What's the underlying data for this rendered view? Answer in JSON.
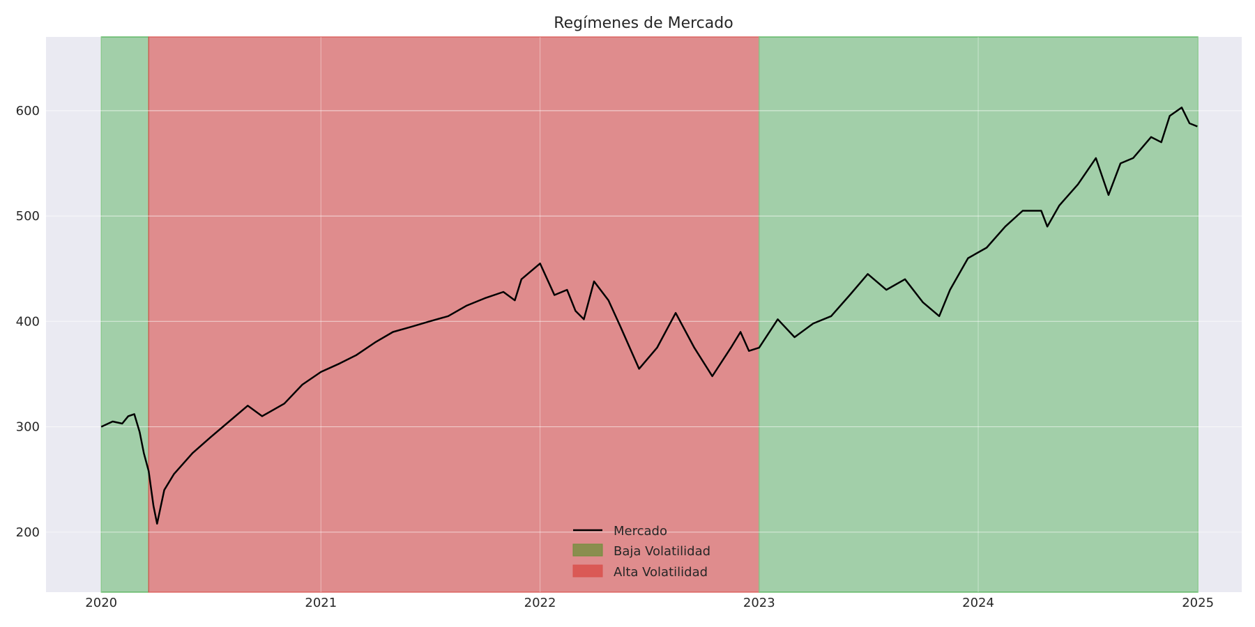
{
  "chart_data": {
    "type": "line",
    "title": "Regímenes de Mercado",
    "xlabel": "",
    "ylabel": "",
    "x_axis": {
      "kind": "date",
      "range": [
        "2019-10-01",
        "2025-03-15"
      ],
      "ticks": [
        "2020",
        "2021",
        "2022",
        "2023",
        "2024",
        "2025"
      ]
    },
    "y_axis": {
      "range": [
        143,
        670
      ],
      "ticks": [
        "200",
        "300",
        "400",
        "500",
        "600"
      ]
    },
    "grid": true,
    "legend": {
      "placement": "lower-center",
      "entries": [
        "Mercado",
        "Baja Volatilidad",
        "Alta Volatilidad"
      ]
    },
    "colors": {
      "background": "#eaeaf2",
      "line": "#000000",
      "low_vol": "#4caf50",
      "high_vol": "#d9534f",
      "grid": "#ffffff"
    },
    "regimes": [
      {
        "name": "Baja Volatilidad",
        "start": "2020-01-01",
        "end": "2020-03-20"
      },
      {
        "name": "Alta Volatilidad",
        "start": "2020-03-20",
        "end": "2023-01-01"
      },
      {
        "name": "Baja Volatilidad",
        "start": "2023-01-01",
        "end": "2025-01-01"
      }
    ],
    "series": [
      {
        "name": "Mercado",
        "points": [
          [
            "2020-01-01",
            300
          ],
          [
            "2020-01-20",
            305
          ],
          [
            "2020-02-05",
            303
          ],
          [
            "2020-02-15",
            310
          ],
          [
            "2020-02-25",
            312
          ],
          [
            "2020-03-05",
            295
          ],
          [
            "2020-03-12",
            275
          ],
          [
            "2020-03-20",
            258
          ],
          [
            "2020-03-28",
            225
          ],
          [
            "2020-04-03",
            208
          ],
          [
            "2020-04-15",
            240
          ],
          [
            "2020-05-01",
            255
          ],
          [
            "2020-06-01",
            275
          ],
          [
            "2020-07-01",
            290
          ],
          [
            "2020-08-01",
            305
          ],
          [
            "2020-09-01",
            320
          ],
          [
            "2020-09-25",
            310
          ],
          [
            "2020-11-01",
            322
          ],
          [
            "2020-12-01",
            340
          ],
          [
            "2021-01-01",
            352
          ],
          [
            "2021-02-01",
            360
          ],
          [
            "2021-03-01",
            368
          ],
          [
            "2021-04-01",
            380
          ],
          [
            "2021-05-01",
            390
          ],
          [
            "2021-06-01",
            395
          ],
          [
            "2021-07-01",
            400
          ],
          [
            "2021-08-01",
            405
          ],
          [
            "2021-09-01",
            415
          ],
          [
            "2021-10-01",
            422
          ],
          [
            "2021-11-01",
            428
          ],
          [
            "2021-11-20",
            420
          ],
          [
            "2021-12-01",
            440
          ],
          [
            "2022-01-01",
            455
          ],
          [
            "2022-01-25",
            425
          ],
          [
            "2022-02-15",
            430
          ],
          [
            "2022-03-01",
            410
          ],
          [
            "2022-03-15",
            402
          ],
          [
            "2022-04-01",
            438
          ],
          [
            "2022-04-25",
            420
          ],
          [
            "2022-05-15",
            395
          ],
          [
            "2022-06-15",
            355
          ],
          [
            "2022-07-15",
            375
          ],
          [
            "2022-08-15",
            408
          ],
          [
            "2022-09-15",
            375
          ],
          [
            "2022-10-15",
            348
          ],
          [
            "2022-11-15",
            375
          ],
          [
            "2022-12-01",
            390
          ],
          [
            "2022-12-15",
            372
          ],
          [
            "2023-01-01",
            375
          ],
          [
            "2023-02-01",
            402
          ],
          [
            "2023-03-01",
            385
          ],
          [
            "2023-04-01",
            398
          ],
          [
            "2023-05-01",
            405
          ],
          [
            "2023-06-01",
            425
          ],
          [
            "2023-07-01",
            445
          ],
          [
            "2023-08-01",
            430
          ],
          [
            "2023-09-01",
            440
          ],
          [
            "2023-10-01",
            418
          ],
          [
            "2023-10-28",
            405
          ],
          [
            "2023-11-15",
            430
          ],
          [
            "2023-12-15",
            460
          ],
          [
            "2024-01-15",
            470
          ],
          [
            "2024-02-15",
            490
          ],
          [
            "2024-03-15",
            505
          ],
          [
            "2024-04-15",
            505
          ],
          [
            "2024-04-25",
            490
          ],
          [
            "2024-05-15",
            510
          ],
          [
            "2024-06-15",
            530
          ],
          [
            "2024-07-15",
            555
          ],
          [
            "2024-08-05",
            520
          ],
          [
            "2024-08-25",
            550
          ],
          [
            "2024-09-15",
            555
          ],
          [
            "2024-10-15",
            575
          ],
          [
            "2024-11-01",
            570
          ],
          [
            "2024-11-15",
            595
          ],
          [
            "2024-12-05",
            603
          ],
          [
            "2024-12-18",
            588
          ],
          [
            "2024-12-31",
            585
          ]
        ]
      }
    ]
  }
}
